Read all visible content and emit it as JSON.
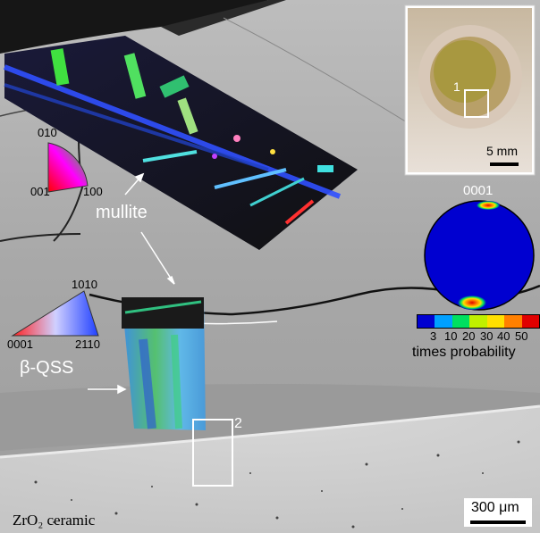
{
  "labels": {
    "mullite": "mullite",
    "beta_qss": "β-QSS",
    "region_1": "1",
    "region_2": "2",
    "zro2": "ZrO₂ ceramic"
  },
  "scale_bars": {
    "main": "300 μm",
    "inset": "5 mm"
  },
  "ipf_cubic_key": {
    "top": "010",
    "bottom_left": "001",
    "bottom_right": "100"
  },
  "ipf_hex_key": {
    "top": "1010",
    "bottom_left": "0001",
    "bottom_right": "2110"
  },
  "pole_figure": {
    "title": "0001",
    "legend_ticks": [
      "3",
      "10",
      "20",
      "30",
      "40",
      "50"
    ],
    "legend_label": "times probability",
    "legend_colors": [
      "#0000d0",
      "#00a0ff",
      "#00e060",
      "#c0f000",
      "#ffe000",
      "#ff8000",
      "#e00000"
    ]
  }
}
